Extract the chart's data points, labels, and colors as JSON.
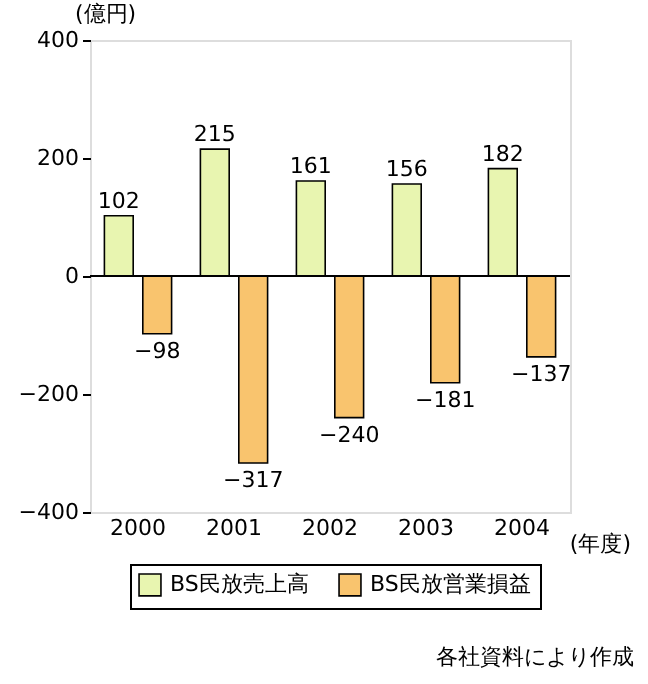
{
  "chart_data": {
    "type": "bar",
    "ylabel": "(億円)",
    "xlabel": "(年度)",
    "categories": [
      "2000",
      "2001",
      "2002",
      "2003",
      "2004"
    ],
    "series": [
      {
        "name": "BS民放売上高",
        "color": "#e8f5b0",
        "values": [
          102,
          215,
          161,
          156,
          182
        ]
      },
      {
        "name": "BS民放営業損益",
        "color": "#f9c46e",
        "values": [
          -98,
          -317,
          -240,
          -181,
          -137
        ]
      }
    ],
    "ylim": [
      -400,
      400
    ],
    "yticks": [
      -400,
      -200,
      0,
      200,
      400
    ],
    "ref_lines": [
      {
        "axis": "y",
        "value": 0
      }
    ],
    "data_labels": true,
    "grid": false,
    "legend": "bottom",
    "annotations": [
      "各社資料により作成"
    ]
  }
}
